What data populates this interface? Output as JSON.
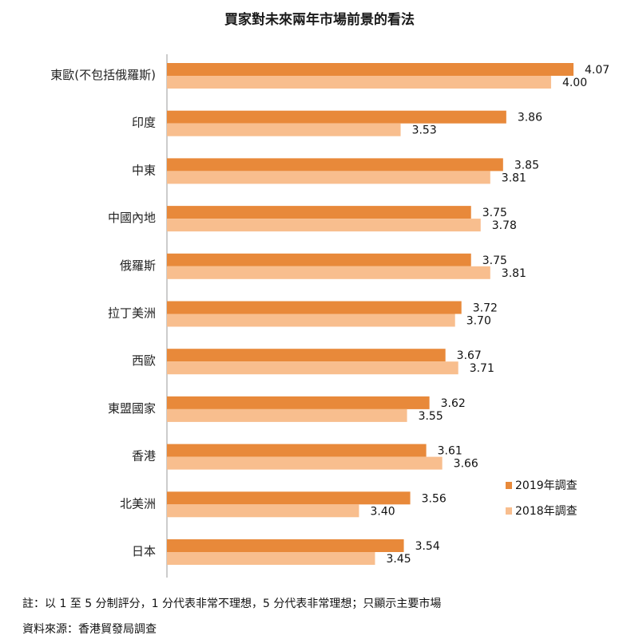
{
  "title": "買家對未來兩年市場前景的看法",
  "chart_data": {
    "type": "bar",
    "orientation": "horizontal",
    "categories": [
      "東歐(不包括俄羅斯)",
      "印度",
      "中東",
      "中國內地",
      "俄羅斯",
      "拉丁美洲",
      "西歐",
      "東盟國家",
      "香港",
      "北美洲",
      "日本"
    ],
    "series": [
      {
        "name": "2019年調查",
        "color": "#E8893A",
        "values": [
          4.07,
          3.86,
          3.85,
          3.75,
          3.75,
          3.72,
          3.67,
          3.62,
          3.61,
          3.56,
          3.54
        ]
      },
      {
        "name": "2018年調查",
        "color": "#F8BE8E",
        "values": [
          4.0,
          3.53,
          3.81,
          3.78,
          3.81,
          3.7,
          3.71,
          3.55,
          3.66,
          3.4,
          3.45
        ]
      }
    ],
    "xlim": [
      2.8,
      4.07
    ],
    "legend_position": "bottom-right",
    "grid": false
  },
  "notes": {
    "note": "註：以 1 至 5 分制評分，1 分代表非常不理想，5 分代表非常理想；只顯示主要市場",
    "source": "資料來源：香港貿發局調查"
  }
}
